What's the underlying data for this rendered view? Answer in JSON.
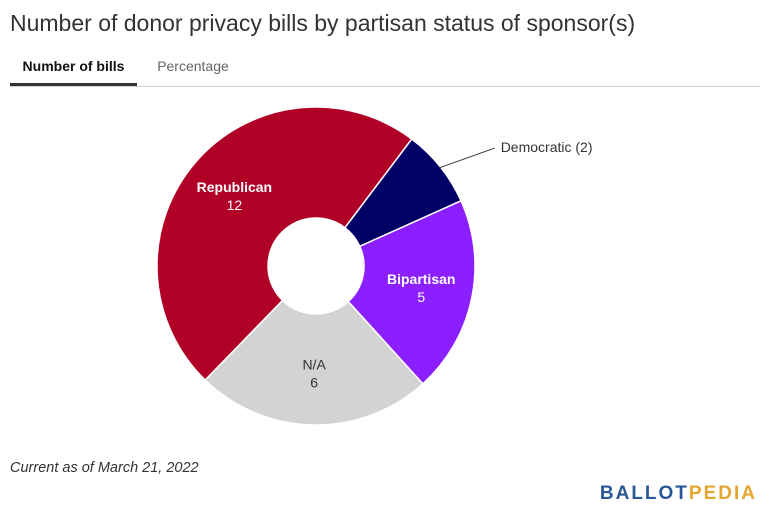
{
  "title": "Number of donor privacy bills by partisan status of sponsor(s)",
  "tabs": [
    {
      "label": "Number of bills",
      "active": true
    },
    {
      "label": "Percentage",
      "active": false
    }
  ],
  "chart_data": {
    "type": "pie",
    "style": "donut",
    "slices": [
      {
        "name": "Democratic",
        "value": 2,
        "color": "#000066",
        "label_text": "Democratic (2)",
        "label_placement": "outside",
        "text_color": "#333333"
      },
      {
        "name": "Bipartisan",
        "value": 5,
        "color": "#8b1fff",
        "label_placement": "inside",
        "text_color": "#ffffff"
      },
      {
        "name": "N/A",
        "value": 6,
        "color": "#d3d3d3",
        "label_placement": "inside",
        "text_color": "#333333"
      },
      {
        "name": "Republican",
        "value": 12,
        "color": "#b00026",
        "label_placement": "inside",
        "text_color": "#ffffff"
      }
    ]
  },
  "footnote": "Current as of March 21, 2022",
  "logo": {
    "part1": "BALLOT",
    "part2": "PEDIA"
  }
}
